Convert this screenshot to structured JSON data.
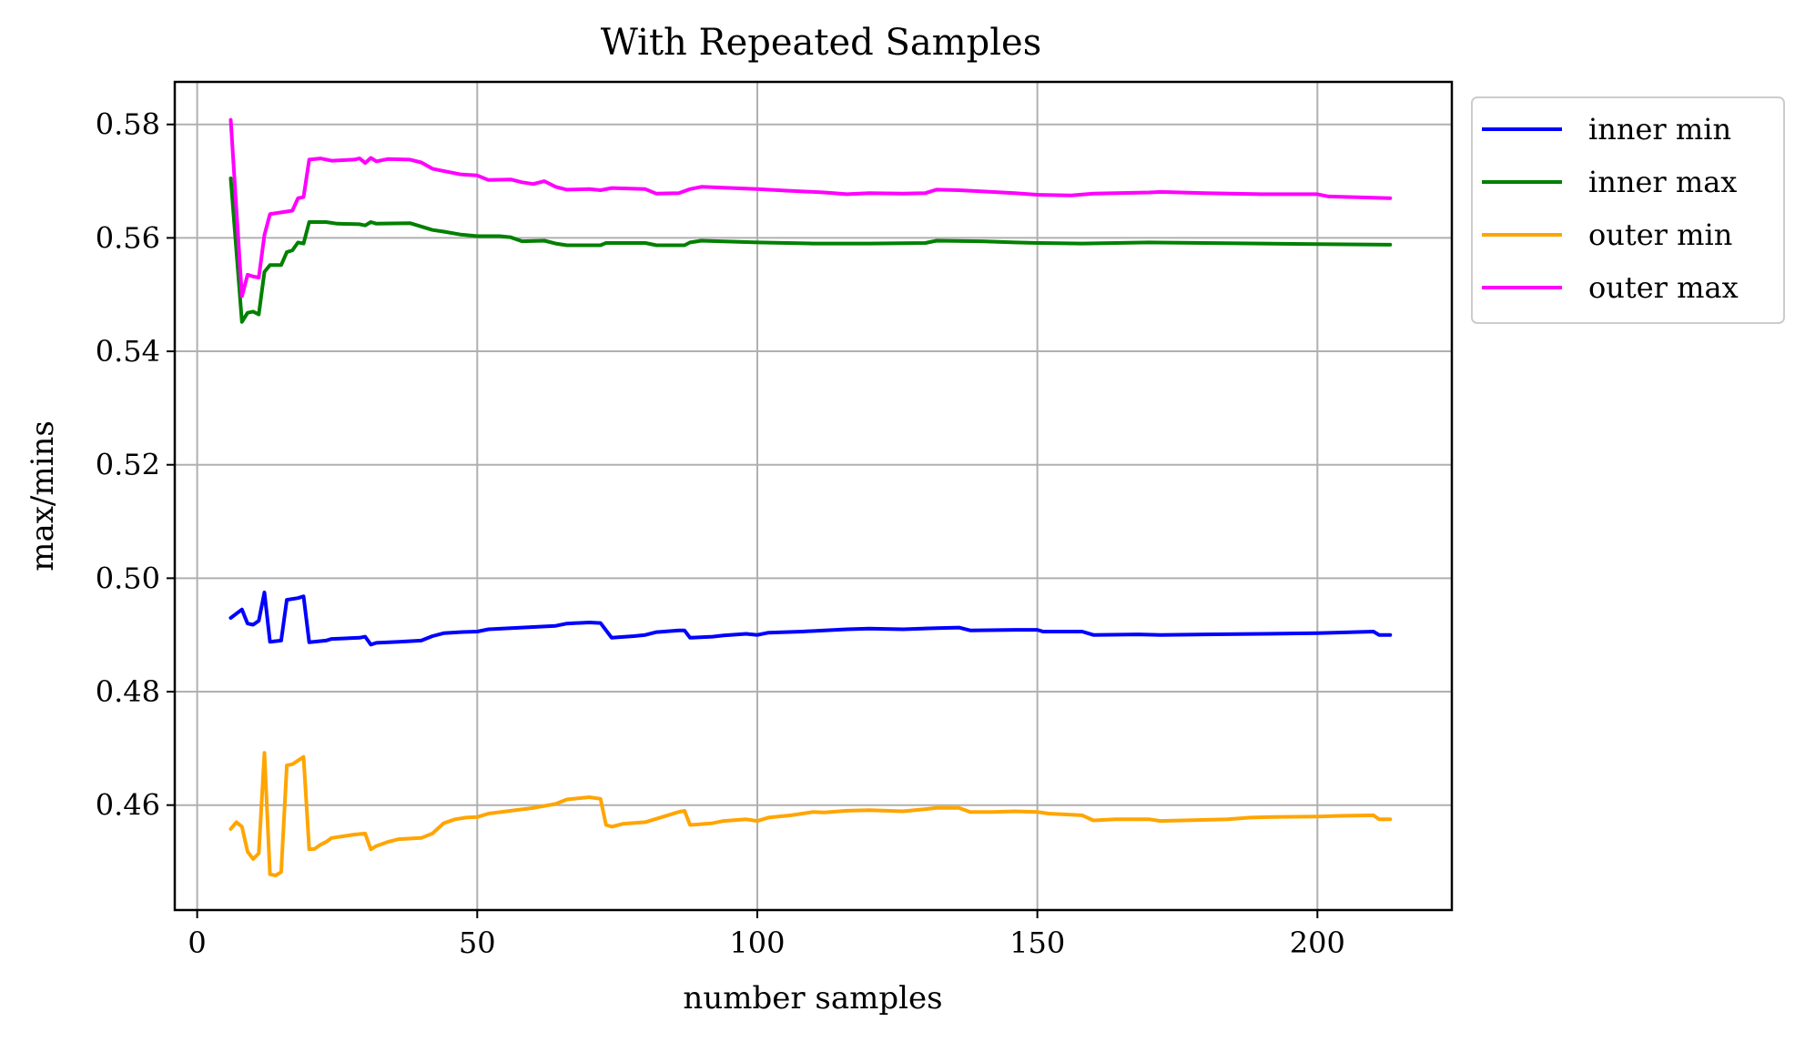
{
  "chart_data": {
    "type": "line",
    "title": "With Repeated Samples",
    "xlabel": "number samples",
    "ylabel": "max/mins",
    "xlim": [
      -4,
      224
    ],
    "ylim": [
      0.4415,
      0.5875
    ],
    "xticks": [
      0,
      50,
      100,
      150,
      200
    ],
    "xtick_labels": [
      "0",
      "50",
      "100",
      "150",
      "200"
    ],
    "yticks": [
      0.46,
      0.48,
      0.5,
      0.52,
      0.54,
      0.56,
      0.58
    ],
    "ytick_labels": [
      "0.46",
      "0.48",
      "0.50",
      "0.52",
      "0.54",
      "0.56",
      "0.58"
    ],
    "grid": true,
    "legend_position": "outside-top-right",
    "series": [
      {
        "name": "inner min",
        "color": "#0000ff",
        "points": [
          [
            6,
            0.493
          ],
          [
            8,
            0.4945
          ],
          [
            9,
            0.492
          ],
          [
            10,
            0.4918
          ],
          [
            11,
            0.4925
          ],
          [
            12,
            0.4975
          ],
          [
            13,
            0.4888
          ],
          [
            15,
            0.489
          ],
          [
            16,
            0.4962
          ],
          [
            18,
            0.4965
          ],
          [
            19,
            0.4968
          ],
          [
            20,
            0.4887
          ],
          [
            23,
            0.489
          ],
          [
            24,
            0.4893
          ],
          [
            29,
            0.4895
          ],
          [
            30,
            0.4897
          ],
          [
            31,
            0.4883
          ],
          [
            32,
            0.4886
          ],
          [
            36,
            0.4888
          ],
          [
            40,
            0.489
          ],
          [
            42,
            0.4898
          ],
          [
            44,
            0.4903
          ],
          [
            47,
            0.4905
          ],
          [
            50,
            0.4906
          ],
          [
            52,
            0.491
          ],
          [
            56,
            0.4912
          ],
          [
            60,
            0.4914
          ],
          [
            64,
            0.4916
          ],
          [
            66,
            0.492
          ],
          [
            70,
            0.4922
          ],
          [
            72,
            0.4921
          ],
          [
            74,
            0.4895
          ],
          [
            78,
            0.4898
          ],
          [
            80,
            0.49
          ],
          [
            82,
            0.4905
          ],
          [
            86,
            0.4908
          ],
          [
            87,
            0.4908
          ],
          [
            88,
            0.4895
          ],
          [
            92,
            0.4897
          ],
          [
            94,
            0.4899
          ],
          [
            98,
            0.4902
          ],
          [
            100,
            0.49
          ],
          [
            102,
            0.4904
          ],
          [
            108,
            0.4906
          ],
          [
            112,
            0.4908
          ],
          [
            116,
            0.491
          ],
          [
            120,
            0.4911
          ],
          [
            126,
            0.491
          ],
          [
            132,
            0.4912
          ],
          [
            136,
            0.4913
          ],
          [
            138,
            0.4908
          ],
          [
            146,
            0.4909
          ],
          [
            150,
            0.4909
          ],
          [
            151,
            0.4906
          ],
          [
            158,
            0.4906
          ],
          [
            160,
            0.49
          ],
          [
            168,
            0.4901
          ],
          [
            172,
            0.49
          ],
          [
            180,
            0.4901
          ],
          [
            190,
            0.4902
          ],
          [
            200,
            0.4903
          ],
          [
            210,
            0.4906
          ],
          [
            211,
            0.49
          ],
          [
            213,
            0.49
          ]
        ]
      },
      {
        "name": "inner max",
        "color": "#008000",
        "points": [
          [
            6,
            0.5705
          ],
          [
            8,
            0.5452
          ],
          [
            9,
            0.5468
          ],
          [
            10,
            0.547
          ],
          [
            11,
            0.5465
          ],
          [
            12,
            0.554
          ],
          [
            13,
            0.5552
          ],
          [
            15,
            0.5552
          ],
          [
            16,
            0.5575
          ],
          [
            17,
            0.5578
          ],
          [
            18,
            0.5592
          ],
          [
            19,
            0.559
          ],
          [
            20,
            0.5628
          ],
          [
            23,
            0.5628
          ],
          [
            25,
            0.5625
          ],
          [
            29,
            0.5624
          ],
          [
            30,
            0.5622
          ],
          [
            31,
            0.5628
          ],
          [
            32,
            0.5625
          ],
          [
            38,
            0.5626
          ],
          [
            40,
            0.562
          ],
          [
            42,
            0.5614
          ],
          [
            44,
            0.5611
          ],
          [
            47,
            0.5606
          ],
          [
            50,
            0.5603
          ],
          [
            54,
            0.5603
          ],
          [
            56,
            0.5601
          ],
          [
            58,
            0.5594
          ],
          [
            62,
            0.5595
          ],
          [
            64,
            0.559
          ],
          [
            66,
            0.5587
          ],
          [
            70,
            0.5587
          ],
          [
            72,
            0.5587
          ],
          [
            73,
            0.5591
          ],
          [
            80,
            0.5591
          ],
          [
            82,
            0.5587
          ],
          [
            87,
            0.5587
          ],
          [
            88,
            0.5592
          ],
          [
            90,
            0.5595
          ],
          [
            100,
            0.5592
          ],
          [
            110,
            0.559
          ],
          [
            120,
            0.559
          ],
          [
            130,
            0.5591
          ],
          [
            132,
            0.5595
          ],
          [
            140,
            0.5594
          ],
          [
            146,
            0.5592
          ],
          [
            150,
            0.5591
          ],
          [
            158,
            0.559
          ],
          [
            170,
            0.5592
          ],
          [
            180,
            0.5591
          ],
          [
            190,
            0.559
          ],
          [
            200,
            0.5589
          ],
          [
            213,
            0.5588
          ]
        ]
      },
      {
        "name": "outer min",
        "color": "#ffa500",
        "points": [
          [
            6,
            0.4558
          ],
          [
            7,
            0.457
          ],
          [
            8,
            0.4562
          ],
          [
            9,
            0.4518
          ],
          [
            10,
            0.4505
          ],
          [
            11,
            0.4515
          ],
          [
            12,
            0.4692
          ],
          [
            13,
            0.4478
          ],
          [
            14,
            0.4476
          ],
          [
            15,
            0.4482
          ],
          [
            16,
            0.467
          ],
          [
            17,
            0.4672
          ],
          [
            19,
            0.4685
          ],
          [
            20,
            0.4522
          ],
          [
            21,
            0.4523
          ],
          [
            22,
            0.453
          ],
          [
            23,
            0.4535
          ],
          [
            24,
            0.4542
          ],
          [
            26,
            0.4545
          ],
          [
            28,
            0.4548
          ],
          [
            30,
            0.455
          ],
          [
            31,
            0.4522
          ],
          [
            32,
            0.4528
          ],
          [
            34,
            0.4535
          ],
          [
            36,
            0.454
          ],
          [
            40,
            0.4542
          ],
          [
            42,
            0.455
          ],
          [
            44,
            0.4568
          ],
          [
            46,
            0.4575
          ],
          [
            48,
            0.4578
          ],
          [
            50,
            0.4579
          ],
          [
            52,
            0.4585
          ],
          [
            56,
            0.459
          ],
          [
            60,
            0.4595
          ],
          [
            64,
            0.4602
          ],
          [
            66,
            0.461
          ],
          [
            70,
            0.4614
          ],
          [
            72,
            0.4611
          ],
          [
            73,
            0.4565
          ],
          [
            74,
            0.4562
          ],
          [
            76,
            0.4567
          ],
          [
            80,
            0.457
          ],
          [
            82,
            0.4576
          ],
          [
            86,
            0.4588
          ],
          [
            87,
            0.459
          ],
          [
            88,
            0.4565
          ],
          [
            92,
            0.4568
          ],
          [
            94,
            0.4572
          ],
          [
            98,
            0.4575
          ],
          [
            100,
            0.4572
          ],
          [
            102,
            0.4578
          ],
          [
            106,
            0.4582
          ],
          [
            110,
            0.4588
          ],
          [
            112,
            0.4587
          ],
          [
            116,
            0.459
          ],
          [
            120,
            0.4591
          ],
          [
            126,
            0.4589
          ],
          [
            130,
            0.4593
          ],
          [
            132,
            0.4595
          ],
          [
            136,
            0.4595
          ],
          [
            138,
            0.4588
          ],
          [
            142,
            0.4588
          ],
          [
            146,
            0.4589
          ],
          [
            150,
            0.4588
          ],
          [
            152,
            0.4585
          ],
          [
            158,
            0.4582
          ],
          [
            160,
            0.4573
          ],
          [
            164,
            0.4575
          ],
          [
            170,
            0.4575
          ],
          [
            172,
            0.4572
          ],
          [
            180,
            0.4574
          ],
          [
            184,
            0.4575
          ],
          [
            188,
            0.4578
          ],
          [
            192,
            0.4579
          ],
          [
            200,
            0.458
          ],
          [
            204,
            0.4581
          ],
          [
            210,
            0.4582
          ],
          [
            211,
            0.4575
          ],
          [
            213,
            0.4575
          ]
        ]
      },
      {
        "name": "outer max",
        "color": "#ff00ff",
        "points": [
          [
            6,
            0.5808
          ],
          [
            7,
            0.565
          ],
          [
            8,
            0.5497
          ],
          [
            9,
            0.5535
          ],
          [
            10,
            0.5532
          ],
          [
            11,
            0.553
          ],
          [
            12,
            0.5605
          ],
          [
            13,
            0.5642
          ],
          [
            15,
            0.5645
          ],
          [
            17,
            0.5648
          ],
          [
            18,
            0.567
          ],
          [
            19,
            0.5672
          ],
          [
            20,
            0.5738
          ],
          [
            22,
            0.574
          ],
          [
            24,
            0.5736
          ],
          [
            28,
            0.5738
          ],
          [
            29,
            0.574
          ],
          [
            30,
            0.5732
          ],
          [
            31,
            0.5741
          ],
          [
            32,
            0.5735
          ],
          [
            34,
            0.5739
          ],
          [
            38,
            0.5738
          ],
          [
            40,
            0.5733
          ],
          [
            42,
            0.5722
          ],
          [
            44,
            0.5718
          ],
          [
            47,
            0.5712
          ],
          [
            50,
            0.571
          ],
          [
            52,
            0.5702
          ],
          [
            56,
            0.5703
          ],
          [
            58,
            0.5698
          ],
          [
            60,
            0.5695
          ],
          [
            62,
            0.57
          ],
          [
            64,
            0.569
          ],
          [
            66,
            0.5685
          ],
          [
            70,
            0.5686
          ],
          [
            72,
            0.5684
          ],
          [
            74,
            0.5688
          ],
          [
            80,
            0.5686
          ],
          [
            82,
            0.5678
          ],
          [
            86,
            0.5679
          ],
          [
            88,
            0.5686
          ],
          [
            90,
            0.569
          ],
          [
            100,
            0.5686
          ],
          [
            106,
            0.5683
          ],
          [
            112,
            0.568
          ],
          [
            116,
            0.5677
          ],
          [
            120,
            0.5679
          ],
          [
            126,
            0.5678
          ],
          [
            130,
            0.5679
          ],
          [
            132,
            0.5685
          ],
          [
            136,
            0.5684
          ],
          [
            140,
            0.5682
          ],
          [
            146,
            0.5679
          ],
          [
            150,
            0.5676
          ],
          [
            156,
            0.5675
          ],
          [
            160,
            0.5678
          ],
          [
            170,
            0.568
          ],
          [
            172,
            0.5681
          ],
          [
            180,
            0.5679
          ],
          [
            190,
            0.5677
          ],
          [
            200,
            0.5677
          ],
          [
            202,
            0.5673
          ],
          [
            210,
            0.5671
          ],
          [
            213,
            0.567
          ]
        ]
      }
    ]
  }
}
